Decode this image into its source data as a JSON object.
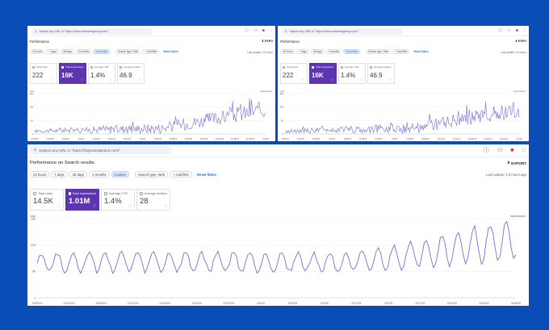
{
  "colors": {
    "background": "#0b4db7",
    "accent": "#5e35b1",
    "line": "#7e6bd0",
    "link": "#1a73e8"
  },
  "panels": [
    {
      "search_placeholder": "Inspect any URL in \"https://www.networkagency.com/\"",
      "title": "Performance",
      "export_label": "EXPO",
      "filters": [
        "24 hours",
        "7 days",
        "28 days",
        "3 months",
        "12 months"
      ],
      "active_filter": 4,
      "search_type": "Search type: Web",
      "add_filter": "+ Add filter",
      "reset": "Reset filters",
      "last_updated": "Last update: 2.5 hours",
      "metrics": [
        {
          "label": "Total clicks",
          "value": "222",
          "selected": false
        },
        {
          "label": "Total impressions",
          "value": "16K",
          "selected": true
        },
        {
          "label": "Average CTR",
          "value": "1.4%",
          "selected": false
        },
        {
          "label": "Average position",
          "value": "46.9",
          "selected": false
        }
      ],
      "y_axis_title": "Impr.",
      "y_axis_title_right": "Impressions",
      "y_ticks": [
        "150",
        "100",
        "50",
        "0"
      ],
      "x_ticks": [
        "1/23/24",
        "2/16/24",
        "3/10/24",
        "4/2/24",
        "4/25/24",
        "5/18/24",
        "6/10/24",
        "7/3/24",
        "7/26/24",
        "8/18/24",
        "9/10/24",
        "10/3/24",
        "10/26/24",
        "11/18/24",
        "12/11/24",
        "1/3/25"
      ]
    },
    {
      "search_placeholder": "Inspect any URL in \"https://www.networkagency.com/\"",
      "title": "Performance",
      "export_label": "EXPO",
      "filters": [
        "24 hours",
        "7 days",
        "28 days",
        "3 months",
        "12 months"
      ],
      "active_filter": 4,
      "search_type": "Search type: Web",
      "add_filter": "+ Add filter",
      "reset": "Reset filters",
      "last_updated": "Last update: 2.5 hours",
      "metrics": [
        {
          "label": "Total clicks",
          "value": "222",
          "selected": false
        },
        {
          "label": "Total impressions",
          "value": "16K",
          "selected": true
        },
        {
          "label": "Average CTR",
          "value": "1.4%",
          "selected": false
        },
        {
          "label": "Average position",
          "value": "46.9",
          "selected": false
        }
      ],
      "y_axis_title": "Impr.",
      "y_axis_title_right": "Impressions",
      "y_ticks": [
        "150",
        "100",
        "50",
        "0"
      ],
      "x_ticks": [
        "1/23/24",
        "2/16/24",
        "3/10/24",
        "4/2/24",
        "4/25/24",
        "5/18/24",
        "6/10/24",
        "7/3/24",
        "7/26/24",
        "8/18/24",
        "9/10/24",
        "10/3/24",
        "10/26/24",
        "11/18/24",
        "12/11/24",
        "1/3/25"
      ]
    },
    {
      "search_placeholder": "Inspect any URL in \"https://hayesandpeace.com/\"",
      "title": "Performance on Search results",
      "export_label": "EXPORT",
      "filters": [
        "24 hours",
        "7 days",
        "28 days",
        "3 months",
        "Custom"
      ],
      "active_filter": 4,
      "search_type": "Search type: Web",
      "add_filter": "+ Add filter",
      "reset": "Reset filters",
      "last_updated": "Last update: 2.5 hours ago",
      "metrics": [
        {
          "label": "Total clicks",
          "value": "14.5K",
          "selected": false
        },
        {
          "label": "Total impressions",
          "value": "1.01M",
          "selected": true
        },
        {
          "label": "Average CTR",
          "value": "1.4%",
          "selected": false
        },
        {
          "label": "Average position",
          "value": "28",
          "selected": false
        }
      ],
      "y_axis_title": "Impr.",
      "y_axis_title_right": "Impressions",
      "y_ticks": [
        "18K",
        "12K",
        "6K",
        "0"
      ],
      "x_ticks": [
        "9/30/24",
        "10/14/24",
        "10/28/24",
        "11/11/24",
        "11/25/24",
        "12/9/24",
        "12/23/24",
        "1/6/25",
        "1/20/25",
        "2/3/25",
        "2/17/25",
        "3/3/25",
        "3/17/25",
        "3/31/25",
        "4/14/25",
        "4/28/25"
      ]
    }
  ]
}
